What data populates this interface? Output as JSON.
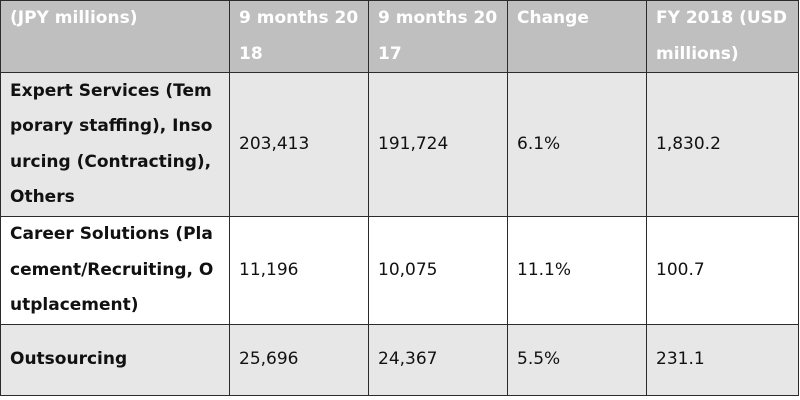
{
  "table": {
    "headers": [
      "(JPY millions)",
      "9 months 2018",
      "9 months 2017",
      "Change",
      "FY 2018 (USD millions)"
    ],
    "rows": [
      {
        "segment": "Expert Services (Temporary staffing), Insourcing (Contracting), Others",
        "m2018": "203,413",
        "m2017": "191,724",
        "change": "6.1%",
        "usd": "1,830.2"
      },
      {
        "segment": "Career Solutions (Placement/Recruiting, Outplacement)",
        "m2018": "11,196",
        "m2017": "10,075",
        "change": "11.1%",
        "usd": "100.7"
      },
      {
        "segment": "Outsourcing",
        "m2018": "25,696",
        "m2017": "24,367",
        "change": "5.5%",
        "usd": "231.1"
      }
    ]
  },
  "colors": {
    "header_bg": "#bfbfbf",
    "header_text": "#ffffff",
    "shaded_row": "#e7e7e7",
    "border": "#2b2b2b"
  }
}
